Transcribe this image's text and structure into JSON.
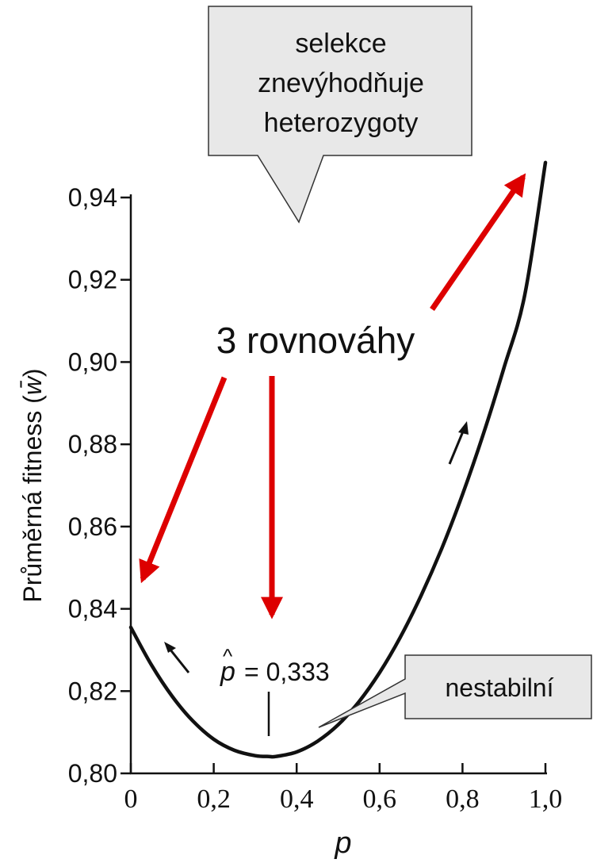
{
  "chart_data": {
    "type": "line",
    "title": "",
    "xlabel": "p",
    "ylabel": "Průměrná fitness (",
    "ylabel_symbol": "w̄",
    "ylabel_close": ")",
    "xlim": [
      0,
      1.0
    ],
    "ylim": [
      0.8,
      0.95
    ],
    "x_ticks": [
      0,
      0.2,
      0.4,
      0.6,
      0.8,
      1.0
    ],
    "x_tick_labels": [
      "0",
      "0,2",
      "0,4",
      "0,6",
      "0,8",
      "1,0"
    ],
    "y_ticks": [
      0.8,
      0.82,
      0.84,
      0.86,
      0.88,
      0.9,
      0.92,
      0.94
    ],
    "y_tick_labels": [
      "0,80",
      "0,82",
      "0,84",
      "0,86",
      "0,88",
      "0,90",
      "0,92",
      "0,94"
    ],
    "grid": false,
    "series": [
      {
        "color": "#111111",
        "x": [
          0,
          0.05,
          0.1,
          0.15,
          0.2,
          0.25,
          0.3,
          0.333,
          0.35,
          0.4,
          0.45,
          0.5,
          0.55,
          0.6,
          0.65,
          0.7,
          0.75,
          0.8,
          0.85,
          0.9,
          0.95,
          1.0
        ],
        "y": [
          0.8355,
          0.8263,
          0.8187,
          0.8127,
          0.8083,
          0.8056,
          0.8043,
          0.8041,
          0.8041,
          0.8052,
          0.8078,
          0.8118,
          0.8174,
          0.8245,
          0.8331,
          0.8432,
          0.8547,
          0.8678,
          0.8824,
          0.8986,
          0.9162,
          0.9485
        ]
      }
    ],
    "equilibrium": {
      "x": 0.333,
      "label": "= 0,333",
      "symbol": "p"
    }
  },
  "annotations": {
    "top_callout_lines": [
      "selekce",
      "znevýhodňuje",
      "heterozygoty"
    ],
    "middle_label": "3 rovnováhy",
    "right_callout": "nestabilní",
    "callout_fill": "#e8e8e8",
    "arrow_color": "#dd0000",
    "curve_color": "#111111"
  }
}
